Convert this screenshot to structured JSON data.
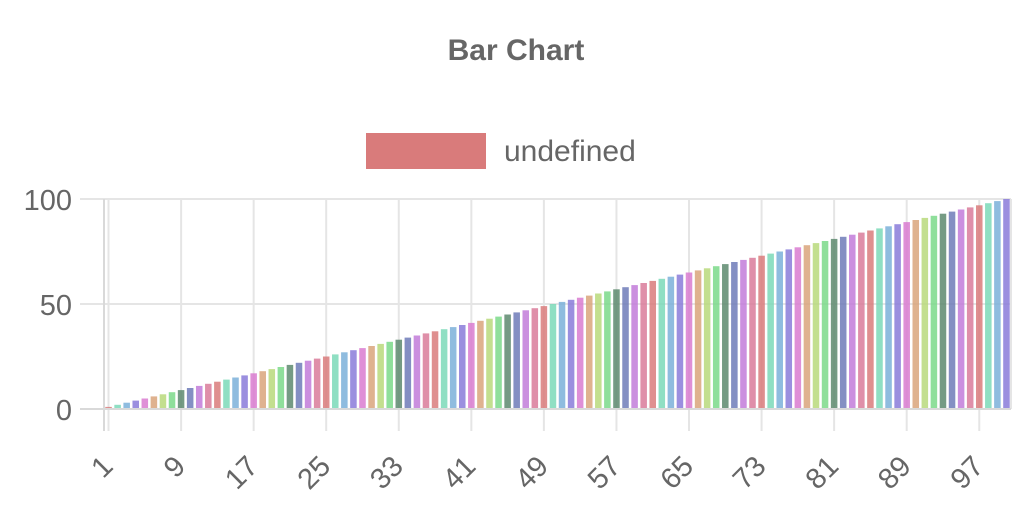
{
  "chart_data": {
    "type": "bar",
    "title": "Bar Chart",
    "legend": {
      "position": "top",
      "entries": [
        {
          "label": "undefined",
          "color": "#d97b7b"
        }
      ]
    },
    "x": [
      1,
      2,
      3,
      4,
      5,
      6,
      7,
      8,
      9,
      10,
      11,
      12,
      13,
      14,
      15,
      16,
      17,
      18,
      19,
      20,
      21,
      22,
      23,
      24,
      25,
      26,
      27,
      28,
      29,
      30,
      31,
      32,
      33,
      34,
      35,
      36,
      37,
      38,
      39,
      40,
      41,
      42,
      43,
      44,
      45,
      46,
      47,
      48,
      49,
      50,
      51,
      52,
      53,
      54,
      55,
      56,
      57,
      58,
      59,
      60,
      61,
      62,
      63,
      64,
      65,
      66,
      67,
      68,
      69,
      70,
      71,
      72,
      73,
      74,
      75,
      76,
      77,
      78,
      79,
      80,
      81,
      82,
      83,
      84,
      85,
      86,
      87,
      88,
      89,
      90,
      91,
      92,
      93,
      94,
      95,
      96,
      97,
      98,
      99,
      100
    ],
    "values": [
      1,
      2,
      3,
      4,
      5,
      6,
      7,
      8,
      9,
      10,
      11,
      12,
      13,
      14,
      15,
      16,
      17,
      18,
      19,
      20,
      21,
      22,
      23,
      24,
      25,
      26,
      27,
      28,
      29,
      30,
      31,
      32,
      33,
      34,
      35,
      36,
      37,
      38,
      39,
      40,
      41,
      42,
      43,
      44,
      45,
      46,
      47,
      48,
      49,
      50,
      51,
      52,
      53,
      54,
      55,
      56,
      57,
      58,
      59,
      60,
      61,
      62,
      63,
      64,
      65,
      66,
      67,
      68,
      69,
      70,
      71,
      72,
      73,
      74,
      75,
      76,
      77,
      78,
      79,
      80,
      81,
      82,
      83,
      84,
      85,
      86,
      87,
      88,
      89,
      90,
      91,
      92,
      93,
      94,
      95,
      96,
      97,
      98,
      99,
      100
    ],
    "x_tick_labels": [
      "1",
      "9",
      "17",
      "25",
      "33",
      "41",
      "49",
      "57",
      "65",
      "73",
      "81",
      "89",
      "97"
    ],
    "y_tick_labels": [
      "0",
      "50",
      "100"
    ],
    "ylim": [
      0,
      100
    ],
    "grid": true,
    "xlabel": "",
    "ylabel": "",
    "bar_palette": [
      "#d97b7b",
      "#7bd9b8",
      "#7bb0d9",
      "#8a7bd9",
      "#d97bd0",
      "#d9a57b",
      "#b8d97b",
      "#7bd98a",
      "#5d8a6e",
      "#6e7bb8",
      "#c27bd9",
      "#d97b9a"
    ]
  }
}
